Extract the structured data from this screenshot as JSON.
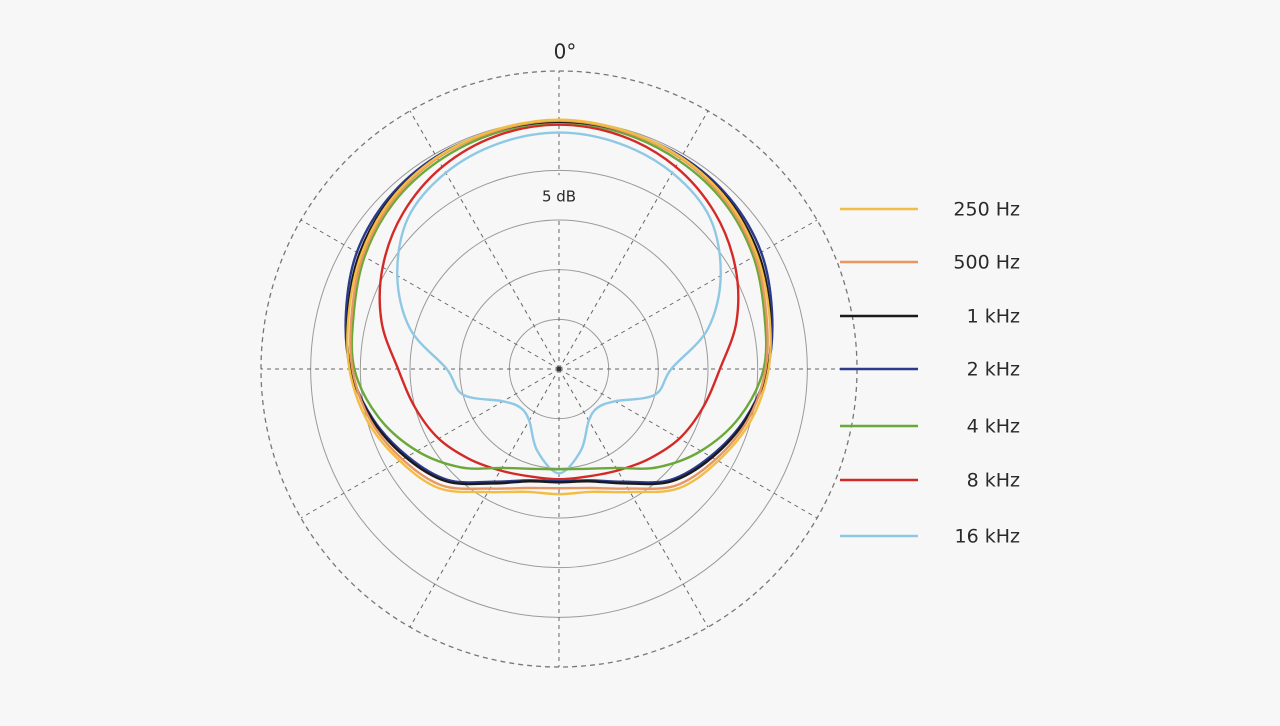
{
  "chart_data": {
    "type": "polar",
    "theta_label": "0°",
    "scale_label": "5 dB",
    "theta": [
      0,
      15,
      30,
      45,
      60,
      75,
      90,
      105,
      120,
      135,
      150,
      165,
      180,
      195,
      210,
      225,
      240,
      255,
      270,
      285,
      300,
      315,
      330,
      345
    ],
    "thetaticks": [
      0,
      30,
      60,
      90,
      120,
      150,
      180,
      210,
      240,
      270,
      300,
      330
    ],
    "rlim": [
      -25,
      5
    ],
    "rticks": [
      -20,
      -15,
      -10,
      -5,
      0
    ],
    "series": [
      {
        "name": "250 Hz",
        "color": "#f2bd44",
        "values": [
          0.1,
          -0.1,
          -0.4,
          -1,
          -2,
          -3.1,
          -3.9,
          -5,
          -6.5,
          -8,
          -10.7,
          -12.2,
          -12.4,
          -12.2,
          -10.7,
          -8,
          -6.5,
          -5,
          -3.9,
          -3.1,
          -2,
          -1,
          -0.4,
          -0.1
        ]
      },
      {
        "name": "500 Hz",
        "color": "#ea9660",
        "values": [
          0,
          -0.2,
          -0.5,
          -1.2,
          -2.2,
          -3.4,
          -4.2,
          -5.3,
          -6.8,
          -8.4,
          -11.1,
          -12.6,
          -13,
          -12.6,
          -11.1,
          -8.4,
          -6.8,
          -5.3,
          -4.2,
          -3.4,
          -2.2,
          -1.2,
          -0.5,
          -0.2
        ]
      },
      {
        "name": "1 kHz",
        "color": "#1a1a1a",
        "values": [
          -0.1,
          -0.2,
          -0.4,
          -0.9,
          -1.8,
          -3,
          -4,
          -5.5,
          -7.2,
          -9,
          -11.7,
          -13.3,
          -13.6,
          -13.3,
          -11.7,
          -9,
          -7.2,
          -5.5,
          -4,
          -3,
          -1.8,
          -0.9,
          -0.4,
          -0.2
        ]
      },
      {
        "name": "2 kHz",
        "color": "#2c3a8e",
        "values": [
          -0.1,
          -0.2,
          -0.3,
          -0.7,
          -1.5,
          -2.8,
          -4,
          -5.6,
          -7.4,
          -9.2,
          -11.9,
          -13.4,
          -13.7,
          -13.4,
          -11.9,
          -9.2,
          -7.4,
          -5.6,
          -4,
          -2.8,
          -1.5,
          -0.7,
          -0.3,
          -0.2
        ]
      },
      {
        "name": "4 kHz",
        "color": "#6aa83a",
        "values": [
          -0.2,
          -0.4,
          -0.8,
          -1.4,
          -2.4,
          -3.6,
          -4.4,
          -6.2,
          -8.5,
          -11,
          -13.5,
          -14.6,
          -14.9,
          -14.6,
          -13.5,
          -11,
          -8.5,
          -6.2,
          -4.4,
          -3.6,
          -2.4,
          -1.4,
          -0.8,
          -0.4
        ]
      },
      {
        "name": "8 kHz",
        "color": "#d42a27",
        "values": [
          -0.4,
          -0.7,
          -1.5,
          -2.8,
          -4.5,
          -6.5,
          -8.8,
          -10,
          -11,
          -12.2,
          -13.2,
          -13.8,
          -13.9,
          -13.8,
          -13.2,
          -12.2,
          -11,
          -10,
          -8.8,
          -6.5,
          -4.5,
          -2.8,
          -1.5,
          -0.7
        ]
      },
      {
        "name": "16 kHz",
        "color": "#8fc8e4",
        "values": [
          -1.2,
          -1.5,
          -2.2,
          -3.5,
          -6.2,
          -9.5,
          -13.7,
          -15,
          -18.5,
          -19.5,
          -19,
          -16.5,
          -14.5,
          -16.5,
          -19,
          -19.5,
          -18.5,
          -15,
          -13.7,
          -9.5,
          -6.2,
          -3.5,
          -2.2,
          -1.5
        ]
      }
    ]
  }
}
